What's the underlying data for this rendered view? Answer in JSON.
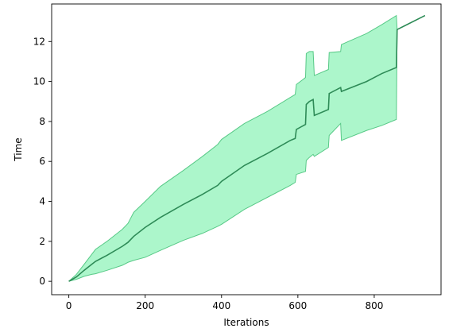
{
  "chart_data": {
    "type": "line",
    "xlabel": "Iterations",
    "ylabel": "Time",
    "xlim": [
      -45,
      975
    ],
    "ylim": [
      -0.67,
      13.88
    ],
    "xticks": [
      0,
      200,
      400,
      600,
      800
    ],
    "yticks": [
      0,
      2,
      4,
      6,
      8,
      10,
      12
    ],
    "grid": false,
    "series": [
      {
        "color": "#2e8b57",
        "band_color": "#a8f5c8",
        "band_edge_color": "#58c987",
        "points": [
          {
            "x": 0,
            "y": 0.0,
            "lower": 0.0,
            "upper": 0.0
          },
          {
            "x": 20,
            "y": 0.22,
            "lower": 0.1,
            "upper": 0.35
          },
          {
            "x": 40,
            "y": 0.55,
            "lower": 0.25,
            "upper": 0.85
          },
          {
            "x": 60,
            "y": 0.85,
            "lower": 0.35,
            "upper": 1.35
          },
          {
            "x": 70,
            "y": 1.0,
            "lower": 0.38,
            "upper": 1.6
          },
          {
            "x": 100,
            "y": 1.3,
            "lower": 0.55,
            "upper": 2.0
          },
          {
            "x": 140,
            "y": 1.75,
            "lower": 0.8,
            "upper": 2.6
          },
          {
            "x": 155,
            "y": 1.95,
            "lower": 0.95,
            "upper": 2.9
          },
          {
            "x": 170,
            "y": 2.25,
            "lower": 1.05,
            "upper": 3.45
          },
          {
            "x": 200,
            "y": 2.7,
            "lower": 1.2,
            "upper": 4.0
          },
          {
            "x": 240,
            "y": 3.2,
            "lower": 1.55,
            "upper": 4.75
          },
          {
            "x": 300,
            "y": 3.85,
            "lower": 2.05,
            "upper": 5.55
          },
          {
            "x": 350,
            "y": 4.35,
            "lower": 2.4,
            "upper": 6.25
          },
          {
            "x": 390,
            "y": 4.8,
            "lower": 2.75,
            "upper": 6.85
          },
          {
            "x": 400,
            "y": 5.0,
            "lower": 2.85,
            "upper": 7.1
          },
          {
            "x": 460,
            "y": 5.8,
            "lower": 3.6,
            "upper": 7.9
          },
          {
            "x": 520,
            "y": 6.4,
            "lower": 4.2,
            "upper": 8.5
          },
          {
            "x": 580,
            "y": 7.05,
            "lower": 4.8,
            "upper": 9.2
          },
          {
            "x": 593,
            "y": 7.15,
            "lower": 4.95,
            "upper": 9.35
          },
          {
            "x": 596,
            "y": 7.6,
            "lower": 5.35,
            "upper": 9.85
          },
          {
            "x": 620,
            "y": 7.85,
            "lower": 5.5,
            "upper": 10.2
          },
          {
            "x": 622,
            "y": 8.85,
            "lower": 6.05,
            "upper": 11.4
          },
          {
            "x": 630,
            "y": 9.0,
            "lower": 6.2,
            "upper": 11.5
          },
          {
            "x": 640,
            "y": 9.1,
            "lower": 6.35,
            "upper": 11.5
          },
          {
            "x": 643,
            "y": 8.3,
            "lower": 6.25,
            "upper": 10.3
          },
          {
            "x": 680,
            "y": 8.6,
            "lower": 6.7,
            "upper": 10.6
          },
          {
            "x": 682,
            "y": 9.4,
            "lower": 7.3,
            "upper": 11.45
          },
          {
            "x": 712,
            "y": 9.7,
            "lower": 7.9,
            "upper": 11.5
          },
          {
            "x": 714,
            "y": 9.5,
            "lower": 7.05,
            "upper": 11.85
          },
          {
            "x": 780,
            "y": 10.0,
            "lower": 7.55,
            "upper": 12.4
          },
          {
            "x": 820,
            "y": 10.4,
            "lower": 7.8,
            "upper": 12.85
          },
          {
            "x": 858,
            "y": 10.7,
            "lower": 8.1,
            "upper": 13.3
          },
          {
            "x": 860,
            "y": 12.6,
            "lower": 12.6,
            "upper": 12.6
          },
          {
            "x": 933,
            "y": 13.3,
            "lower": 13.3,
            "upper": 13.3
          }
        ]
      }
    ]
  }
}
